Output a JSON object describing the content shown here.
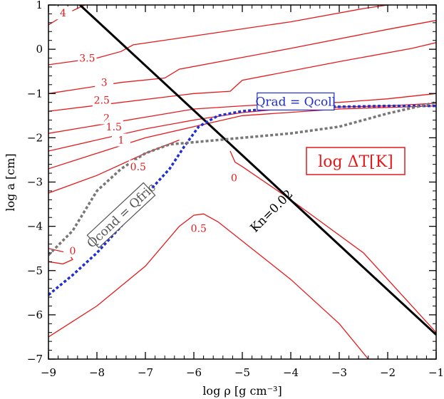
{
  "chart_data": {
    "type": "line",
    "xlabel": "log  ρ [g cm⁻³]",
    "ylabel": "log  a [cm]",
    "xlim": [
      -9,
      -1
    ],
    "ylim": [
      -7,
      1
    ],
    "x_ticks": [
      "−9",
      "−8",
      "−7",
      "−6",
      "−5",
      "−4",
      "−3",
      "−2",
      "−1"
    ],
    "y_ticks": [
      "1",
      "0",
      "−1",
      "−2",
      "−3",
      "−4",
      "−5",
      "−6",
      "−7"
    ],
    "grid": false,
    "legend_box": {
      "text": "log ΔT[K]",
      "color": "#e41a1c",
      "position": "right-middle"
    },
    "colors": {
      "contours": "#e41a1c",
      "knudsen": "#000000",
      "radiation": "#1f2fd0",
      "conduction": "#777777"
    },
    "contours": [
      {
        "label": "4",
        "points": [
          [
            -9.0,
            0.55
          ],
          [
            -8.6,
            0.82
          ],
          [
            -8.25,
            1.0
          ]
        ]
      },
      {
        "label": "3.5",
        "points": [
          [
            -9.0,
            -0.35
          ],
          [
            -8.0,
            -0.2
          ],
          [
            -7.5,
            -0.05
          ],
          [
            -7.25,
            0.1
          ],
          [
            -6.0,
            0.3
          ],
          [
            -4.0,
            0.62
          ],
          [
            -2.5,
            0.92
          ],
          [
            -2.0,
            1.0
          ]
        ]
      },
      {
        "label": "3",
        "points": [
          [
            -9.0,
            -1.0
          ],
          [
            -7.5,
            -0.75
          ],
          [
            -6.6,
            -0.65
          ],
          [
            -6.3,
            -0.45
          ],
          [
            -4.0,
            0.02
          ],
          [
            -2.0,
            0.45
          ],
          [
            -1.0,
            0.65
          ]
        ]
      },
      {
        "label": "2.5",
        "points": [
          [
            -9.0,
            -1.4
          ],
          [
            -6.0,
            -1.0
          ],
          [
            -5.25,
            -0.95
          ],
          [
            -5.0,
            -0.7
          ],
          [
            -3.0,
            -0.28
          ],
          [
            -1.5,
            0.02
          ],
          [
            -1.0,
            0.15
          ]
        ]
      },
      {
        "label": "2",
        "points": [
          [
            -9.0,
            -1.9
          ],
          [
            -6.0,
            -1.35
          ],
          [
            -5.0,
            -1.28
          ],
          [
            -4.0,
            -1.22
          ],
          [
            -3.0,
            -1.2
          ],
          [
            -2.0,
            -1.12
          ],
          [
            -1.0,
            -1.0
          ]
        ]
      },
      {
        "label": "1.5",
        "points": [
          [
            -9.0,
            -2.3
          ],
          [
            -7.0,
            -1.8
          ],
          [
            -6.0,
            -1.6
          ],
          [
            -5.0,
            -1.43
          ],
          [
            -4.0,
            -1.33
          ],
          [
            -2.0,
            -1.28
          ],
          [
            -1.0,
            -1.22
          ]
        ]
      },
      {
        "label": "1",
        "points": [
          [
            -9.0,
            -2.7
          ],
          [
            -8.0,
            -2.35
          ],
          [
            -7.0,
            -2.0
          ],
          [
            -6.0,
            -1.75
          ],
          [
            -5.0,
            -1.5
          ],
          [
            -3.0,
            -1.35
          ],
          [
            -1.0,
            -1.28
          ]
        ]
      },
      {
        "label": "0.5",
        "points": [
          [
            -9.0,
            -3.25
          ],
          [
            -8.0,
            -2.85
          ],
          [
            -7.0,
            -2.35
          ],
          [
            -6.3,
            -2.05
          ]
        ]
      },
      {
        "label": "0",
        "points": [
          [
            -5.25,
            -2.3
          ],
          [
            -5.15,
            -2.55
          ],
          [
            -5.0,
            -2.65
          ],
          [
            -4.0,
            -3.4
          ],
          [
            -2.5,
            -4.6
          ],
          [
            -1.0,
            -6.4
          ]
        ]
      },
      {
        "label": "0.5",
        "points": [
          [
            -9.0,
            -6.5
          ],
          [
            -8.0,
            -5.8
          ],
          [
            -7.0,
            -4.9
          ],
          [
            -6.3,
            -4.0
          ],
          [
            -6.0,
            -3.75
          ],
          [
            -5.8,
            -3.72
          ],
          [
            -5.5,
            -3.9
          ],
          [
            -4.0,
            -5.2
          ],
          [
            -3.0,
            -6.2
          ],
          [
            -2.4,
            -7.0
          ]
        ]
      },
      {
        "label": "0",
        "points": [
          [
            -9.0,
            -4.5
          ],
          [
            -8.6,
            -4.6
          ],
          [
            -8.5,
            -4.75
          ],
          [
            -8.7,
            -4.85
          ],
          [
            -9.0,
            -4.8
          ]
        ]
      }
    ],
    "series": [
      {
        "name": "Kn=0.02",
        "points": [
          [
            -8.35,
            1.0
          ],
          [
            -1.0,
            -6.45
          ]
        ]
      },
      {
        "name": "Qrad = Qcoll",
        "points": [
          [
            -9.0,
            -5.55
          ],
          [
            -8.5,
            -5.1
          ],
          [
            -8.0,
            -4.6
          ],
          [
            -7.5,
            -4.0
          ],
          [
            -7.0,
            -3.3
          ],
          [
            -6.5,
            -2.7
          ],
          [
            -6.2,
            -2.2
          ],
          [
            -5.9,
            -1.75
          ],
          [
            -5.5,
            -1.5
          ],
          [
            -5.0,
            -1.4
          ],
          [
            -4.5,
            -1.35
          ],
          [
            -4.0,
            -1.32
          ],
          [
            -3.0,
            -1.3
          ],
          [
            -2.0,
            -1.28
          ],
          [
            -1.0,
            -1.28
          ]
        ]
      },
      {
        "name": "Qcond = Qfric",
        "points": [
          [
            -9.0,
            -4.65
          ],
          [
            -8.5,
            -4.1
          ],
          [
            -8.0,
            -3.2
          ],
          [
            -7.5,
            -2.7
          ],
          [
            -7.0,
            -2.35
          ],
          [
            -6.5,
            -2.15
          ],
          [
            -6.0,
            -2.1
          ],
          [
            -5.5,
            -2.05
          ],
          [
            -5.0,
            -2.0
          ],
          [
            -4.0,
            -1.9
          ],
          [
            -3.0,
            -1.75
          ],
          [
            -2.0,
            -1.45
          ],
          [
            -1.0,
            -1.2
          ]
        ]
      }
    ],
    "annotations": [
      {
        "text": "Kn=0.02",
        "x": -4.4,
        "y": -3.65,
        "angle": -45,
        "color": "#000000"
      },
      {
        "text": "Qrad = Qcoll",
        "x": -3.9,
        "y": -1.18,
        "angle": 0,
        "color": "#1f2fd0"
      },
      {
        "text": "Qcond = Qfric",
        "x": -7.5,
        "y": -3.75,
        "angle": -43,
        "color": "#555555"
      }
    ],
    "contour_labels": [
      {
        "text": "4",
        "x": -8.7,
        "y": 0.82
      },
      {
        "text": "3.5",
        "x": -8.2,
        "y": -0.2
      },
      {
        "text": "3",
        "x": -7.85,
        "y": -0.75
      },
      {
        "text": "2.5",
        "x": -7.9,
        "y": -1.15
      },
      {
        "text": "2",
        "x": -7.8,
        "y": -1.55
      },
      {
        "text": "1.5",
        "x": -7.65,
        "y": -1.75
      },
      {
        "text": "1",
        "x": -7.5,
        "y": -2.05
      },
      {
        "text": "0.5",
        "x": -7.15,
        "y": -2.65
      },
      {
        "text": "0",
        "x": -5.17,
        "y": -2.9
      },
      {
        "text": "0.5",
        "x": -5.9,
        "y": -4.05
      },
      {
        "text": "0",
        "x": -8.5,
        "y": -4.55
      }
    ]
  }
}
